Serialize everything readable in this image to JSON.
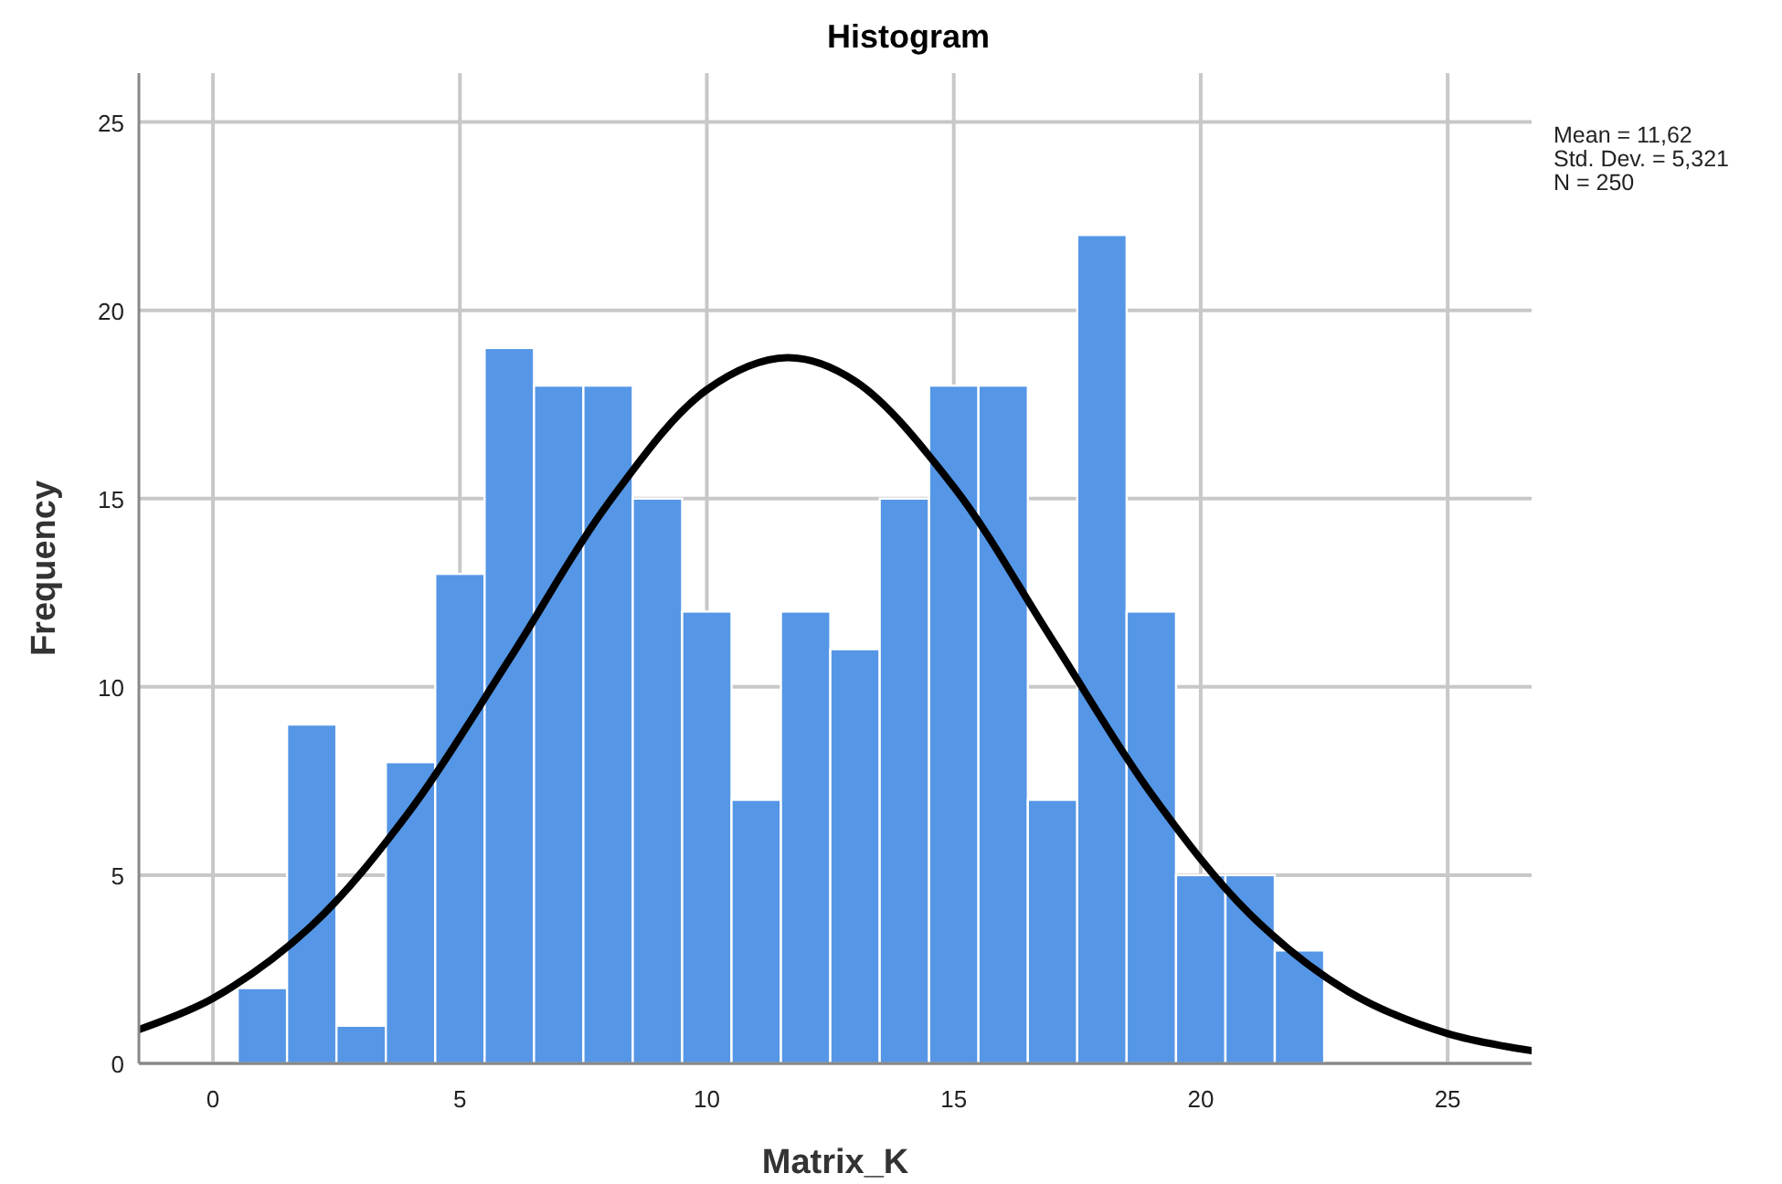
{
  "chart_data": {
    "type": "histogram",
    "title": "Histogram",
    "xlabel": "Matrix_K",
    "ylabel": "Frequency",
    "bins": [
      0.5,
      1.5,
      2.5,
      3.5,
      4.5,
      5.5,
      6.5,
      7.5,
      8.5,
      9.5,
      10.5,
      11.5,
      12.5,
      13.5,
      14.5,
      15.5,
      16.5,
      17.5,
      18.5,
      19.5,
      20.5,
      21.5,
      22.5
    ],
    "series": [
      {
        "color": "#5596e6",
        "values": [
          2,
          9,
          1,
          8,
          13,
          19,
          18,
          18,
          15,
          12,
          7,
          12,
          11,
          15,
          18,
          18,
          7,
          22,
          12,
          5,
          5,
          3
        ]
      },
      {
        "type": "line",
        "color": "#000000",
        "x": [
          -1.5,
          0,
          2,
          4,
          6,
          8,
          10,
          11.62,
          13,
          15,
          17,
          19,
          21,
          23,
          25,
          26.7
        ],
        "values": [
          0.9,
          1.73,
          3.66,
          6.73,
          10.73,
          14.87,
          17.89,
          18.74,
          18.12,
          15.31,
          11.24,
          7.16,
          3.96,
          1.9,
          0.79,
          0.34
        ]
      }
    ],
    "xlim": [
      -1.5,
      26.7
    ],
    "xticks": [
      0,
      5,
      10,
      15,
      20,
      25
    ],
    "ylim": [
      0,
      26.3
    ],
    "yticks": [
      0,
      5,
      10,
      15,
      20,
      25
    ],
    "grid": true,
    "annotations": [
      "Mean = 11,62",
      "Std. Dev. = 5,321",
      "N = 250"
    ]
  }
}
